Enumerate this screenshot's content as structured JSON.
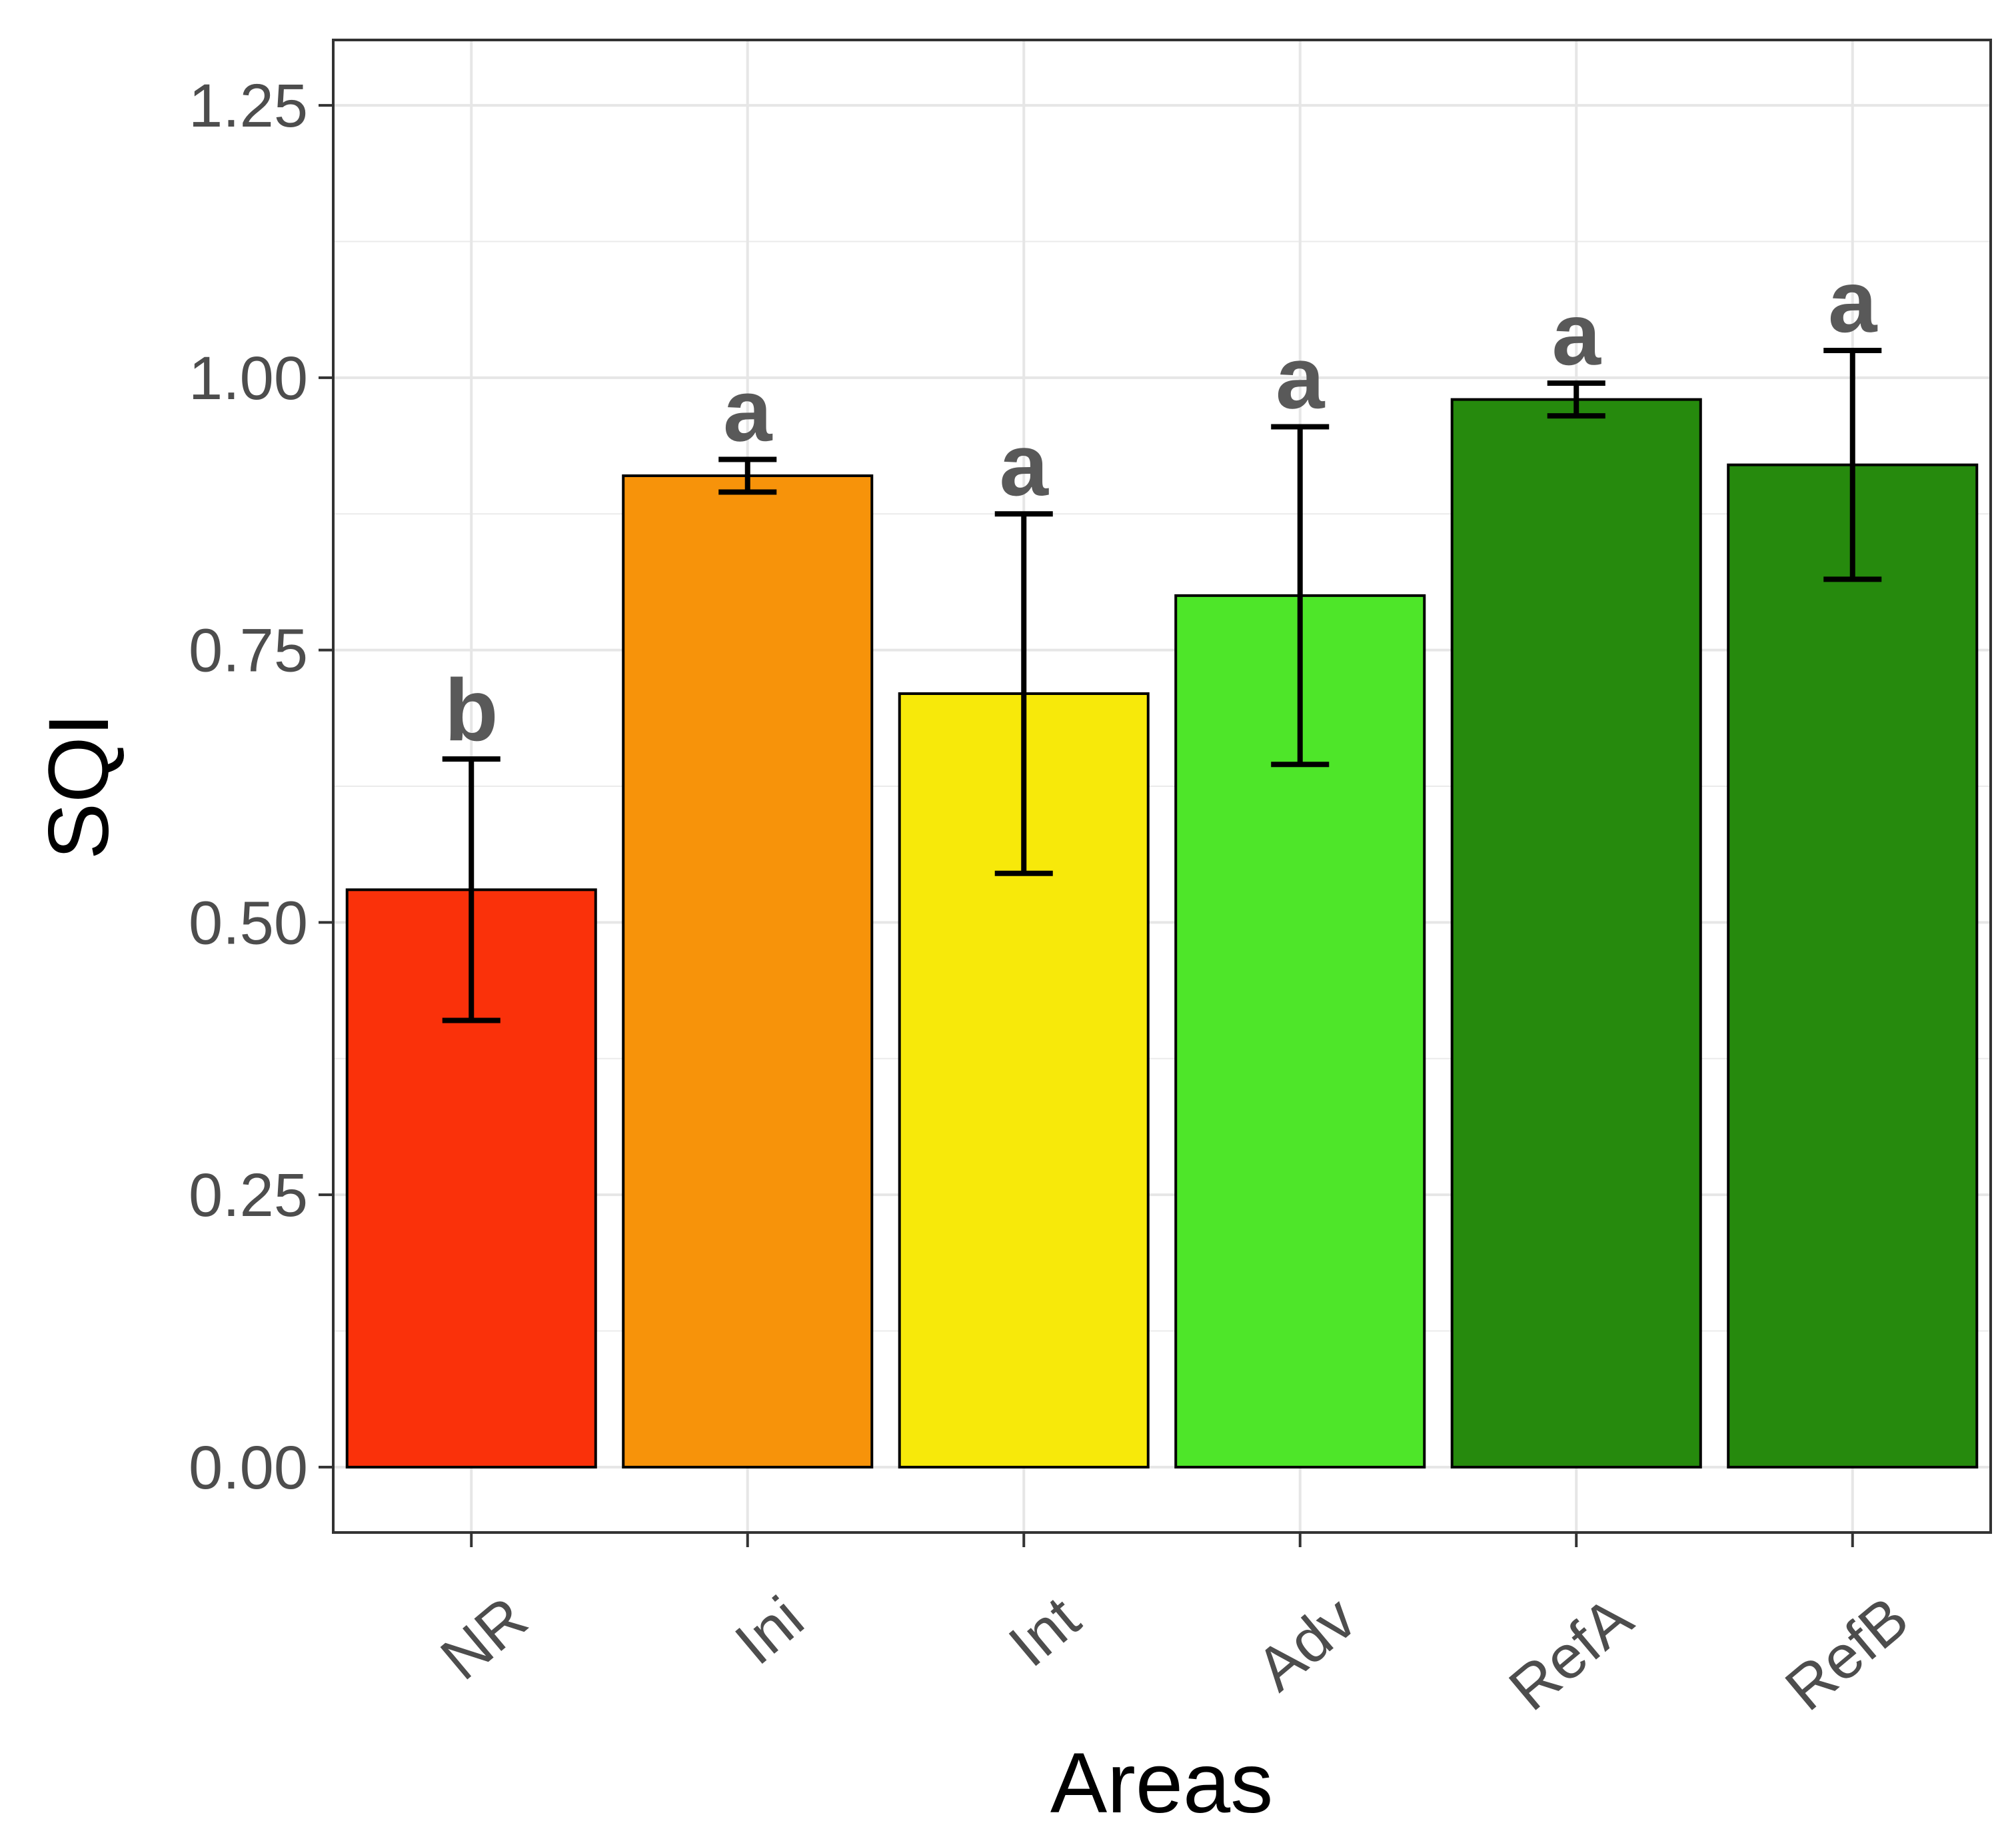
{
  "chart_data": {
    "type": "bar",
    "title": "",
    "xlabel": "Areas",
    "ylabel": "SQI",
    "categories": [
      "NR",
      "Ini",
      "Int",
      "Adv",
      "RefA",
      "RefB"
    ],
    "values": [
      0.53,
      0.91,
      0.71,
      0.8,
      0.98,
      0.92
    ],
    "error_low": [
      0.41,
      0.895,
      0.545,
      0.645,
      0.965,
      0.815
    ],
    "error_high": [
      0.65,
      0.925,
      0.875,
      0.955,
      0.995,
      1.025
    ],
    "significance_letters": [
      "b",
      "a",
      "a",
      "a",
      "a",
      "a"
    ],
    "bar_colors": [
      "#fa310a",
      "#f7930a",
      "#f7e90a",
      "#4ee629",
      "#268a0d",
      "#268a0d"
    ],
    "ylim": [
      -0.06,
      1.31
    ],
    "yticks": [
      "0.00",
      "0.25",
      "0.50",
      "0.75",
      "1.00",
      "1.25"
    ],
    "grid": true,
    "legend": "none"
  }
}
